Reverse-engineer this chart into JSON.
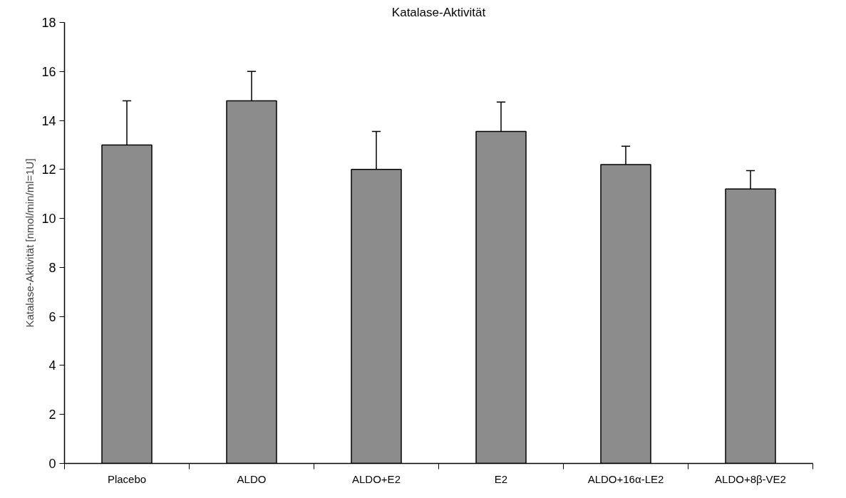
{
  "chart_data": {
    "type": "bar",
    "title": "Katalase-Aktivität",
    "ylabel": "Katalase-Aktivität [nmol/min/ml=1U]",
    "categories": [
      "Placebo",
      "ALDO",
      "ALDO+E2",
      "E2",
      "ALDO+16α-LE2",
      "ALDO+8β-VE2"
    ],
    "values": [
      13.0,
      14.8,
      12.0,
      13.55,
      12.2,
      11.2
    ],
    "errors": [
      [
        13.0,
        14.8
      ],
      [
        14.8,
        16.0
      ],
      [
        12.0,
        13.55
      ],
      [
        13.55,
        14.75
      ],
      [
        12.2,
        12.95
      ],
      [
        11.2,
        11.95
      ]
    ],
    "color": "#8c8c8c",
    "ylim": [
      0,
      18
    ],
    "yticks": [
      0,
      2,
      4,
      6,
      8,
      10,
      12,
      14,
      16,
      18
    ],
    "grid": false
  }
}
